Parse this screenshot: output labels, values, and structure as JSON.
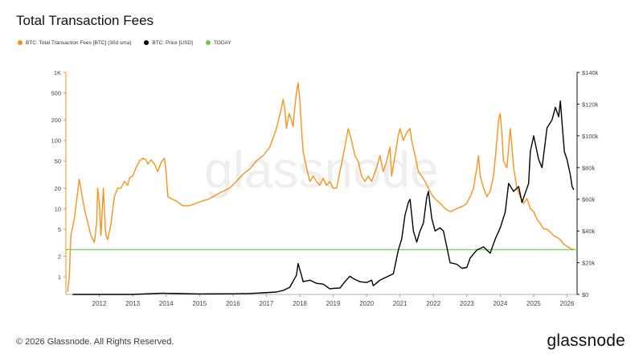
{
  "title": "Total Transaction Fees",
  "legend": [
    {
      "label": "BTC: Total Transaction Fees [BTC] (30d sma)",
      "color": "#f7931a"
    },
    {
      "label": "BTC: Price [USD]",
      "color": "#000000"
    },
    {
      "label": "TODAY",
      "color": "#5fcf4a"
    }
  ],
  "watermark": "glassnode",
  "footer": {
    "copyright": "© 2026 Glassnode. All Rights Reserved.",
    "logo": "glassnode"
  },
  "chart_data": {
    "type": "line",
    "x_ticks": [
      "2012",
      "2013",
      "2014",
      "2015",
      "2016",
      "2017",
      "2018",
      "2019",
      "2020",
      "2021",
      "2022",
      "2023",
      "2024",
      "2025",
      "2026"
    ],
    "x_range": [
      2011.0,
      2026.3
    ],
    "y_left": {
      "scale": "log",
      "range": [
        0.55,
        1000
      ],
      "ticks": [
        1,
        2,
        5,
        10,
        20,
        50,
        100,
        200,
        500,
        1000
      ],
      "tick_labels": [
        "1",
        "2",
        "5",
        "10",
        "20",
        "50",
        "100",
        "200",
        "500",
        "1K"
      ]
    },
    "y_right": {
      "scale": "linear",
      "range": [
        0,
        140000
      ],
      "ticks": [
        0,
        20000,
        40000,
        60000,
        80000,
        100000,
        120000,
        140000
      ],
      "tick_labels": [
        "$0",
        "$20k",
        "$40k",
        "$60k",
        "$80k",
        "$100k",
        "$120k",
        "$140k"
      ]
    },
    "today_value": 2.5,
    "grid": false,
    "legend_position": "top-left",
    "series": [
      {
        "name": "BTC: Total Transaction Fees [BTC] (30d sma)",
        "axis": "left",
        "color": "#f7931a",
        "points": [
          [
            2011.05,
            0.6
          ],
          [
            2011.1,
            1.0
          ],
          [
            2011.15,
            4.0
          ],
          [
            2011.25,
            7.0
          ],
          [
            2011.4,
            27
          ],
          [
            2011.55,
            10
          ],
          [
            2011.75,
            4
          ],
          [
            2011.85,
            3.2
          ],
          [
            2011.92,
            6
          ],
          [
            2011.95,
            20
          ],
          [
            2012.0,
            12
          ],
          [
            2012.05,
            4
          ],
          [
            2012.12,
            20
          ],
          [
            2012.18,
            5
          ],
          [
            2012.2,
            4
          ],
          [
            2012.25,
            3.5
          ],
          [
            2012.35,
            6
          ],
          [
            2012.45,
            15
          ],
          [
            2012.55,
            20
          ],
          [
            2012.65,
            20
          ],
          [
            2012.75,
            25
          ],
          [
            2012.85,
            22
          ],
          [
            2012.9,
            28
          ],
          [
            2013.0,
            30
          ],
          [
            2013.1,
            40
          ],
          [
            2013.2,
            50
          ],
          [
            2013.3,
            55
          ],
          [
            2013.4,
            52
          ],
          [
            2013.45,
            45
          ],
          [
            2013.55,
            52
          ],
          [
            2013.65,
            45
          ],
          [
            2013.75,
            35
          ],
          [
            2013.85,
            48
          ],
          [
            2013.95,
            55
          ],
          [
            2014.0,
            35
          ],
          [
            2014.05,
            15
          ],
          [
            2014.15,
            14
          ],
          [
            2014.3,
            13
          ],
          [
            2014.5,
            11
          ],
          [
            2014.7,
            11
          ],
          [
            2014.9,
            12
          ],
          [
            2015.1,
            13
          ],
          [
            2015.3,
            14
          ],
          [
            2015.5,
            16
          ],
          [
            2015.7,
            18
          ],
          [
            2015.9,
            20
          ],
          [
            2016.1,
            25
          ],
          [
            2016.3,
            32
          ],
          [
            2016.5,
            38
          ],
          [
            2016.7,
            50
          ],
          [
            2016.9,
            60
          ],
          [
            2017.1,
            80
          ],
          [
            2017.3,
            150
          ],
          [
            2017.45,
            300
          ],
          [
            2017.5,
            400
          ],
          [
            2017.55,
            300
          ],
          [
            2017.6,
            150
          ],
          [
            2017.68,
            250
          ],
          [
            2017.75,
            200
          ],
          [
            2017.8,
            160
          ],
          [
            2017.85,
            300
          ],
          [
            2017.9,
            500
          ],
          [
            2017.95,
            700
          ],
          [
            2018.0,
            400
          ],
          [
            2018.05,
            150
          ],
          [
            2018.1,
            70
          ],
          [
            2018.2,
            40
          ],
          [
            2018.3,
            25
          ],
          [
            2018.4,
            30
          ],
          [
            2018.5,
            25
          ],
          [
            2018.6,
            22
          ],
          [
            2018.7,
            28
          ],
          [
            2018.8,
            22
          ],
          [
            2018.9,
            25
          ],
          [
            2019.0,
            20
          ],
          [
            2019.1,
            20
          ],
          [
            2019.2,
            35
          ],
          [
            2019.35,
            80
          ],
          [
            2019.45,
            150
          ],
          [
            2019.55,
            100
          ],
          [
            2019.65,
            60
          ],
          [
            2019.75,
            50
          ],
          [
            2019.85,
            30
          ],
          [
            2019.95,
            25
          ],
          [
            2020.05,
            30
          ],
          [
            2020.15,
            25
          ],
          [
            2020.3,
            40
          ],
          [
            2020.4,
            60
          ],
          [
            2020.5,
            35
          ],
          [
            2020.6,
            50
          ],
          [
            2020.7,
            80
          ],
          [
            2020.75,
            30
          ],
          [
            2020.85,
            60
          ],
          [
            2020.95,
            120
          ],
          [
            2021.0,
            150
          ],
          [
            2021.1,
            100
          ],
          [
            2021.2,
            130
          ],
          [
            2021.3,
            150
          ],
          [
            2021.35,
            100
          ],
          [
            2021.45,
            60
          ],
          [
            2021.55,
            35
          ],
          [
            2021.65,
            30
          ],
          [
            2021.75,
            25
          ],
          [
            2021.85,
            20
          ],
          [
            2021.95,
            16
          ],
          [
            2022.05,
            14
          ],
          [
            2022.2,
            12
          ],
          [
            2022.35,
            10
          ],
          [
            2022.5,
            9
          ],
          [
            2022.7,
            10
          ],
          [
            2022.9,
            11
          ],
          [
            2023.0,
            12
          ],
          [
            2023.1,
            15
          ],
          [
            2023.2,
            20
          ],
          [
            2023.3,
            40
          ],
          [
            2023.35,
            60
          ],
          [
            2023.4,
            30
          ],
          [
            2023.5,
            20
          ],
          [
            2023.6,
            15
          ],
          [
            2023.7,
            18
          ],
          [
            2023.8,
            30
          ],
          [
            2023.9,
            100
          ],
          [
            2023.95,
            200
          ],
          [
            2024.0,
            250
          ],
          [
            2024.05,
            120
          ],
          [
            2024.1,
            50
          ],
          [
            2024.2,
            40
          ],
          [
            2024.3,
            150
          ],
          [
            2024.35,
            80
          ],
          [
            2024.4,
            40
          ],
          [
            2024.5,
            20
          ],
          [
            2024.6,
            15
          ],
          [
            2024.7,
            12
          ],
          [
            2024.8,
            14
          ],
          [
            2024.9,
            10
          ],
          [
            2025.0,
            9
          ],
          [
            2025.1,
            7
          ],
          [
            2025.2,
            6
          ],
          [
            2025.3,
            5
          ],
          [
            2025.4,
            5
          ],
          [
            2025.5,
            4.5
          ],
          [
            2025.6,
            4
          ],
          [
            2025.7,
            3.8
          ],
          [
            2025.8,
            3.5
          ],
          [
            2025.9,
            3
          ],
          [
            2026.0,
            2.8
          ],
          [
            2026.1,
            2.6
          ],
          [
            2026.2,
            2.5
          ]
        ]
      },
      {
        "name": "BTC: Price [USD]",
        "axis": "right",
        "color": "#000000",
        "points": [
          [
            2011.2,
            0
          ],
          [
            2012.0,
            0
          ],
          [
            2013.0,
            0
          ],
          [
            2013.9,
            800
          ],
          [
            2014.0,
            700
          ],
          [
            2014.5,
            500
          ],
          [
            2015.0,
            300
          ],
          [
            2016.0,
            400
          ],
          [
            2016.5,
            600
          ],
          [
            2016.9,
            1000
          ],
          [
            2017.3,
            1500
          ],
          [
            2017.5,
            2500
          ],
          [
            2017.7,
            4500
          ],
          [
            2017.9,
            12000
          ],
          [
            2017.95,
            19500
          ],
          [
            2018.05,
            12000
          ],
          [
            2018.1,
            8000
          ],
          [
            2018.3,
            9000
          ],
          [
            2018.5,
            7000
          ],
          [
            2018.7,
            6500
          ],
          [
            2018.9,
            3500
          ],
          [
            2019.0,
            3800
          ],
          [
            2019.2,
            4000
          ],
          [
            2019.35,
            8000
          ],
          [
            2019.5,
            11500
          ],
          [
            2019.6,
            10000
          ],
          [
            2019.8,
            8000
          ],
          [
            2020.0,
            7500
          ],
          [
            2020.15,
            9000
          ],
          [
            2020.2,
            5500
          ],
          [
            2020.4,
            9000
          ],
          [
            2020.6,
            11000
          ],
          [
            2020.8,
            13000
          ],
          [
            2020.95,
            28000
          ],
          [
            2021.05,
            35000
          ],
          [
            2021.15,
            50000
          ],
          [
            2021.25,
            58000
          ],
          [
            2021.3,
            60000
          ],
          [
            2021.4,
            40000
          ],
          [
            2021.5,
            33000
          ],
          [
            2021.6,
            40000
          ],
          [
            2021.7,
            45000
          ],
          [
            2021.8,
            61000
          ],
          [
            2021.85,
            65000
          ],
          [
            2021.95,
            48000
          ],
          [
            2022.05,
            40000
          ],
          [
            2022.2,
            42000
          ],
          [
            2022.3,
            40000
          ],
          [
            2022.4,
            30000
          ],
          [
            2022.5,
            20000
          ],
          [
            2022.7,
            19000
          ],
          [
            2022.85,
            16500
          ],
          [
            2023.0,
            17000
          ],
          [
            2023.1,
            23000
          ],
          [
            2023.3,
            28000
          ],
          [
            2023.5,
            30000
          ],
          [
            2023.7,
            26000
          ],
          [
            2023.85,
            35000
          ],
          [
            2024.0,
            42000
          ],
          [
            2024.15,
            52000
          ],
          [
            2024.25,
            70000
          ],
          [
            2024.4,
            65000
          ],
          [
            2024.55,
            68000
          ],
          [
            2024.65,
            58000
          ],
          [
            2024.85,
            70000
          ],
          [
            2024.9,
            90000
          ],
          [
            2025.0,
            100000
          ],
          [
            2025.15,
            85000
          ],
          [
            2025.25,
            80000
          ],
          [
            2025.4,
            105000
          ],
          [
            2025.55,
            110000
          ],
          [
            2025.65,
            118000
          ],
          [
            2025.75,
            112000
          ],
          [
            2025.8,
            122000
          ],
          [
            2025.85,
            108000
          ],
          [
            2025.92,
            90000
          ],
          [
            2026.0,
            85000
          ],
          [
            2026.1,
            75000
          ],
          [
            2026.15,
            68000
          ],
          [
            2026.2,
            66000
          ]
        ]
      }
    ]
  }
}
